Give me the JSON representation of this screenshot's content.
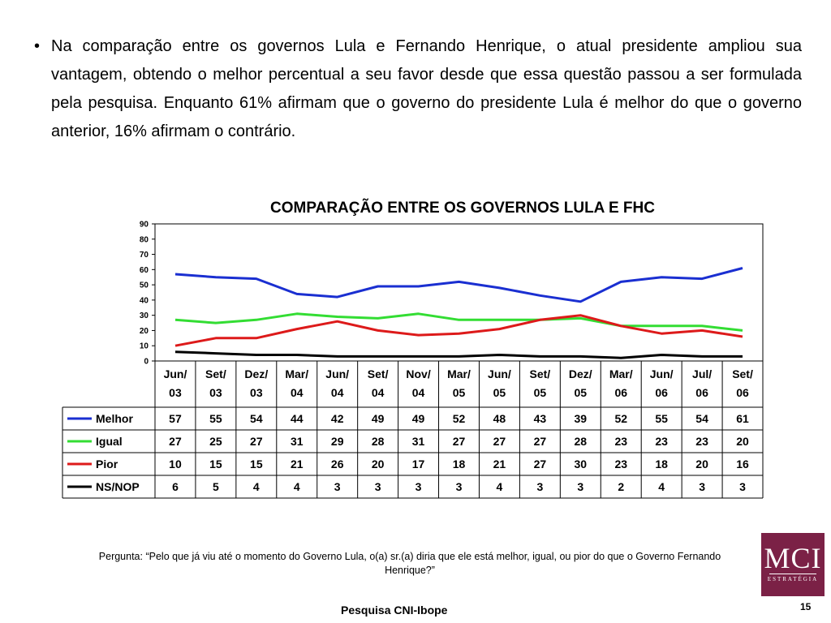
{
  "intro": {
    "bullet": "•",
    "text": "Na comparação entre os governos Lula e Fernando Henrique, o atual presidente ampliou sua vantagem, obtendo o melhor percentual a seu favor desde que essa questão passou a ser formulada pela pesquisa. Enquanto 61% afirmam que o governo do presidente Lula é melhor do que o governo anterior, 16% afirmam o contrário."
  },
  "chart_data": {
    "type": "line",
    "title": "COMPARAÇÃO ENTRE OS GOVERNOS LULA E FHC",
    "categories": [
      [
        "Jun/",
        "03"
      ],
      [
        "Set/",
        "03"
      ],
      [
        "Dez/",
        "03"
      ],
      [
        "Mar/",
        "04"
      ],
      [
        "Jun/",
        "04"
      ],
      [
        "Set/",
        "04"
      ],
      [
        "Nov/",
        "04"
      ],
      [
        "Mar/",
        "05"
      ],
      [
        "Jun/",
        "05"
      ],
      [
        "Set/",
        "05"
      ],
      [
        "Dez/",
        "05"
      ],
      [
        "Mar/",
        "06"
      ],
      [
        "Jun/",
        "06"
      ],
      [
        "Jul/",
        "06"
      ],
      [
        "Set/",
        "06"
      ]
    ],
    "ylim": [
      0,
      90
    ],
    "yticks": [
      0,
      10,
      20,
      30,
      40,
      50,
      60,
      70,
      80,
      90
    ],
    "grid": false,
    "legend": "table-below",
    "series": [
      {
        "name": "Melhor",
        "color": "#1a2fd1",
        "values": [
          57,
          55,
          54,
          44,
          42,
          49,
          49,
          52,
          48,
          43,
          39,
          52,
          55,
          54,
          61
        ]
      },
      {
        "name": "Igual",
        "color": "#33dd33",
        "values": [
          27,
          25,
          27,
          31,
          29,
          28,
          31,
          27,
          27,
          27,
          28,
          23,
          23,
          23,
          20
        ]
      },
      {
        "name": "Pior",
        "color": "#dd1a1a",
        "values": [
          10,
          15,
          15,
          21,
          26,
          20,
          17,
          18,
          21,
          27,
          30,
          23,
          18,
          20,
          16
        ]
      },
      {
        "name": "NS/NOP",
        "color": "#000000",
        "values": [
          6,
          5,
          4,
          4,
          3,
          3,
          3,
          3,
          4,
          3,
          3,
          2,
          4,
          3,
          3
        ]
      }
    ]
  },
  "footer": {
    "question": "Pergunta: “Pelo que já viu até o momento do Governo Lula, o(a) sr.(a) diria que ele está melhor, igual, ou pior do que o Governo Fernando Henrique?”",
    "source": "Pesquisa CNI-Ibope",
    "page_number": "15"
  },
  "logo": {
    "main": "MCI",
    "sub": "ESTRATÉGIA",
    "color": "#7b2146"
  }
}
